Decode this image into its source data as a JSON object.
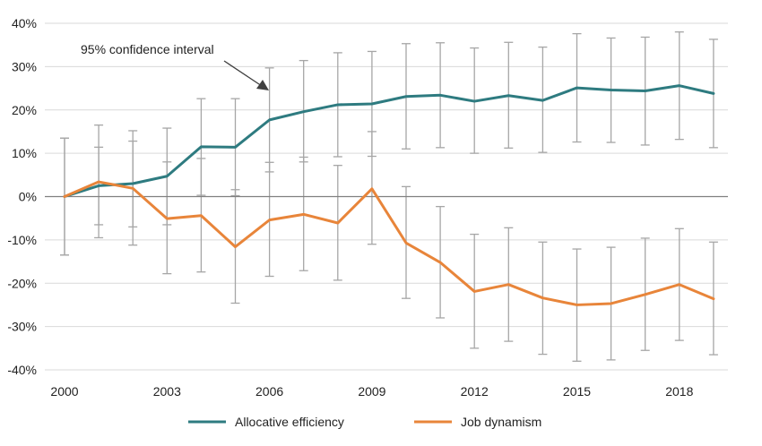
{
  "chart_data": {
    "type": "line",
    "x": [
      2000,
      2001,
      2002,
      2003,
      2004,
      2005,
      2006,
      2007,
      2008,
      2009,
      2010,
      2011,
      2012,
      2013,
      2014,
      2015,
      2016,
      2017,
      2018,
      2019
    ],
    "x_tick_labels": [
      "2000",
      "2003",
      "2006",
      "2009",
      "2012",
      "2015",
      "2018"
    ],
    "y_tick_labels": [
      "40%",
      "30%",
      "20%",
      "10%",
      "0%",
      "-10%",
      "-20%",
      "-30%",
      "-40%"
    ],
    "ylim": [
      -40,
      40
    ],
    "y_unit": "%",
    "xlabel": "",
    "ylabel": "",
    "grid": "horizontal",
    "legend_position": "bottom",
    "annotation": "95% confidence interval",
    "colors": {
      "grid": "#d9d9d9",
      "zero_line": "#808080",
      "error_bar": "#a6a6a6"
    },
    "series": [
      {
        "name": "Allocative efficiency",
        "color": "#2e7b80",
        "values": [
          0.0,
          2.5,
          3.0,
          4.7,
          11.5,
          11.4,
          17.7,
          19.6,
          21.2,
          21.4,
          23.1,
          23.4,
          22.0,
          23.3,
          22.2,
          25.1,
          24.6,
          24.4,
          25.6,
          23.8
        ],
        "ci_low": [
          -13.5,
          -6.5,
          -7.0,
          -6.5,
          0.3,
          0.2,
          5.7,
          8.0,
          9.2,
          9.3,
          11.0,
          11.3,
          10.0,
          11.2,
          10.2,
          12.6,
          12.5,
          11.9,
          13.2,
          11.3
        ],
        "ci_high": [
          13.5,
          11.4,
          12.8,
          15.8,
          22.6,
          22.6,
          29.7,
          31.4,
          33.2,
          33.5,
          35.3,
          35.5,
          34.3,
          35.6,
          34.5,
          37.6,
          36.6,
          36.8,
          38.0,
          36.3
        ]
      },
      {
        "name": "Job dynamism",
        "color": "#e8853a",
        "values": [
          0.0,
          3.4,
          1.9,
          -5.1,
          -4.4,
          -11.6,
          -5.4,
          -4.1,
          -6.1,
          1.8,
          -10.7,
          -15.2,
          -21.9,
          -20.3,
          -23.4,
          -25.0,
          -24.7,
          -22.6,
          -20.3,
          -23.6
        ],
        "ci_low": [
          -13.5,
          -9.5,
          -11.2,
          -17.8,
          -17.4,
          -24.6,
          -18.4,
          -17.1,
          -19.3,
          -11.0,
          -23.5,
          -28.0,
          -35.0,
          -33.4,
          -36.4,
          -38.0,
          -37.7,
          -35.5,
          -33.2,
          -36.5
        ],
        "ci_high": [
          13.5,
          16.5,
          15.2,
          8.0,
          8.8,
          1.6,
          7.9,
          9.1,
          7.2,
          15.0,
          2.3,
          -2.3,
          -8.7,
          -7.2,
          -10.5,
          -12.1,
          -11.7,
          -9.6,
          -7.4,
          -10.5
        ]
      }
    ]
  }
}
